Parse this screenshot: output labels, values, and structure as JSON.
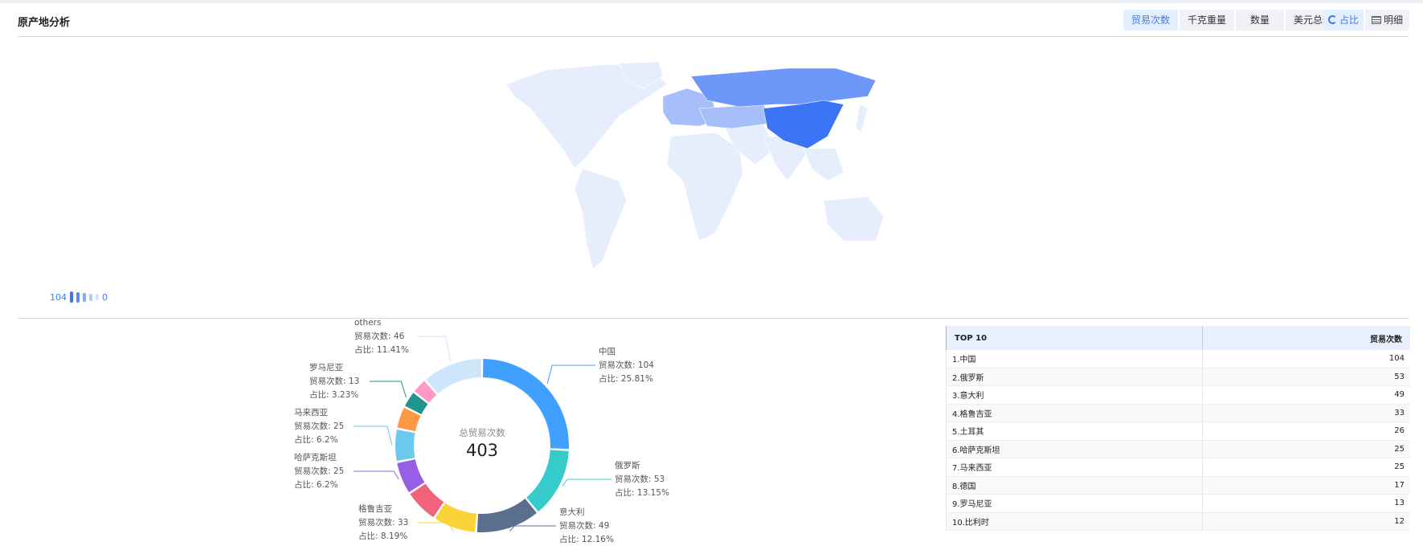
{
  "header": {
    "title": "原产地分析"
  },
  "metric_tabs": [
    {
      "label": "贸易次数",
      "active": true
    },
    {
      "label": "千克重量",
      "active": false
    },
    {
      "label": "数量",
      "active": false
    },
    {
      "label": "美元总价",
      "active": false
    }
  ],
  "view_tabs": [
    {
      "label": "占比",
      "icon": "donut-icon",
      "active": true
    },
    {
      "label": "明细",
      "icon": "table-icon",
      "active": false
    }
  ],
  "map": {
    "legend_max": "104",
    "legend_min": "0",
    "highlight": {
      "中国": 104,
      "俄罗斯": 53
    },
    "colors": {
      "max": "#3b74f5",
      "high": "#6d97f8",
      "mid": "#a6bffb",
      "low": "#e6edfd"
    }
  },
  "chart_data": {
    "type": "pie",
    "center_title": "总贸易次数",
    "center_value": "403",
    "value_label": "贸易次数",
    "share_label": "占比",
    "slices": [
      {
        "name": "中国",
        "value": 104,
        "share": "25.81%",
        "color": "#3fa0ff"
      },
      {
        "name": "俄罗斯",
        "value": 53,
        "share": "13.15%",
        "color": "#36cbcb"
      },
      {
        "name": "意大利",
        "value": 49,
        "share": "12.16%",
        "color": "#5b6e8e"
      },
      {
        "name": "格鲁吉亚",
        "value": 33,
        "share": "8.19%",
        "color": "#fad337"
      },
      {
        "name": "土耳其",
        "value": 26,
        "share": "",
        "color": "#f2637b"
      },
      {
        "name": "哈萨克斯坦",
        "value": 25,
        "share": "6.2%",
        "color": "#975fe4"
      },
      {
        "name": "马来西亚",
        "value": 25,
        "share": "6.2%",
        "color": "#6cc8ec"
      },
      {
        "name": "德国",
        "value": 17,
        "share": "",
        "color": "#ff9845"
      },
      {
        "name": "罗马尼亚",
        "value": 13,
        "share": "3.23%",
        "color": "#1f9490"
      },
      {
        "name": "比利时",
        "value": 12,
        "share": "",
        "color": "#ff99c3"
      },
      {
        "name": "others",
        "value": 46,
        "share": "11.41%",
        "color": "#cfe5fc"
      }
    ]
  },
  "table": {
    "headers": [
      "TOP 10",
      "贸易次数"
    ],
    "rows": [
      [
        "1.中国",
        "104"
      ],
      [
        "2.俄罗斯",
        "53"
      ],
      [
        "3.意大利",
        "49"
      ],
      [
        "4.格鲁吉亚",
        "33"
      ],
      [
        "5.土耳其",
        "26"
      ],
      [
        "6.哈萨克斯坦",
        "25"
      ],
      [
        "7.马来西亚",
        "25"
      ],
      [
        "8.德国",
        "17"
      ],
      [
        "9.罗马尼亚",
        "13"
      ],
      [
        "10.比利时",
        "12"
      ]
    ]
  }
}
